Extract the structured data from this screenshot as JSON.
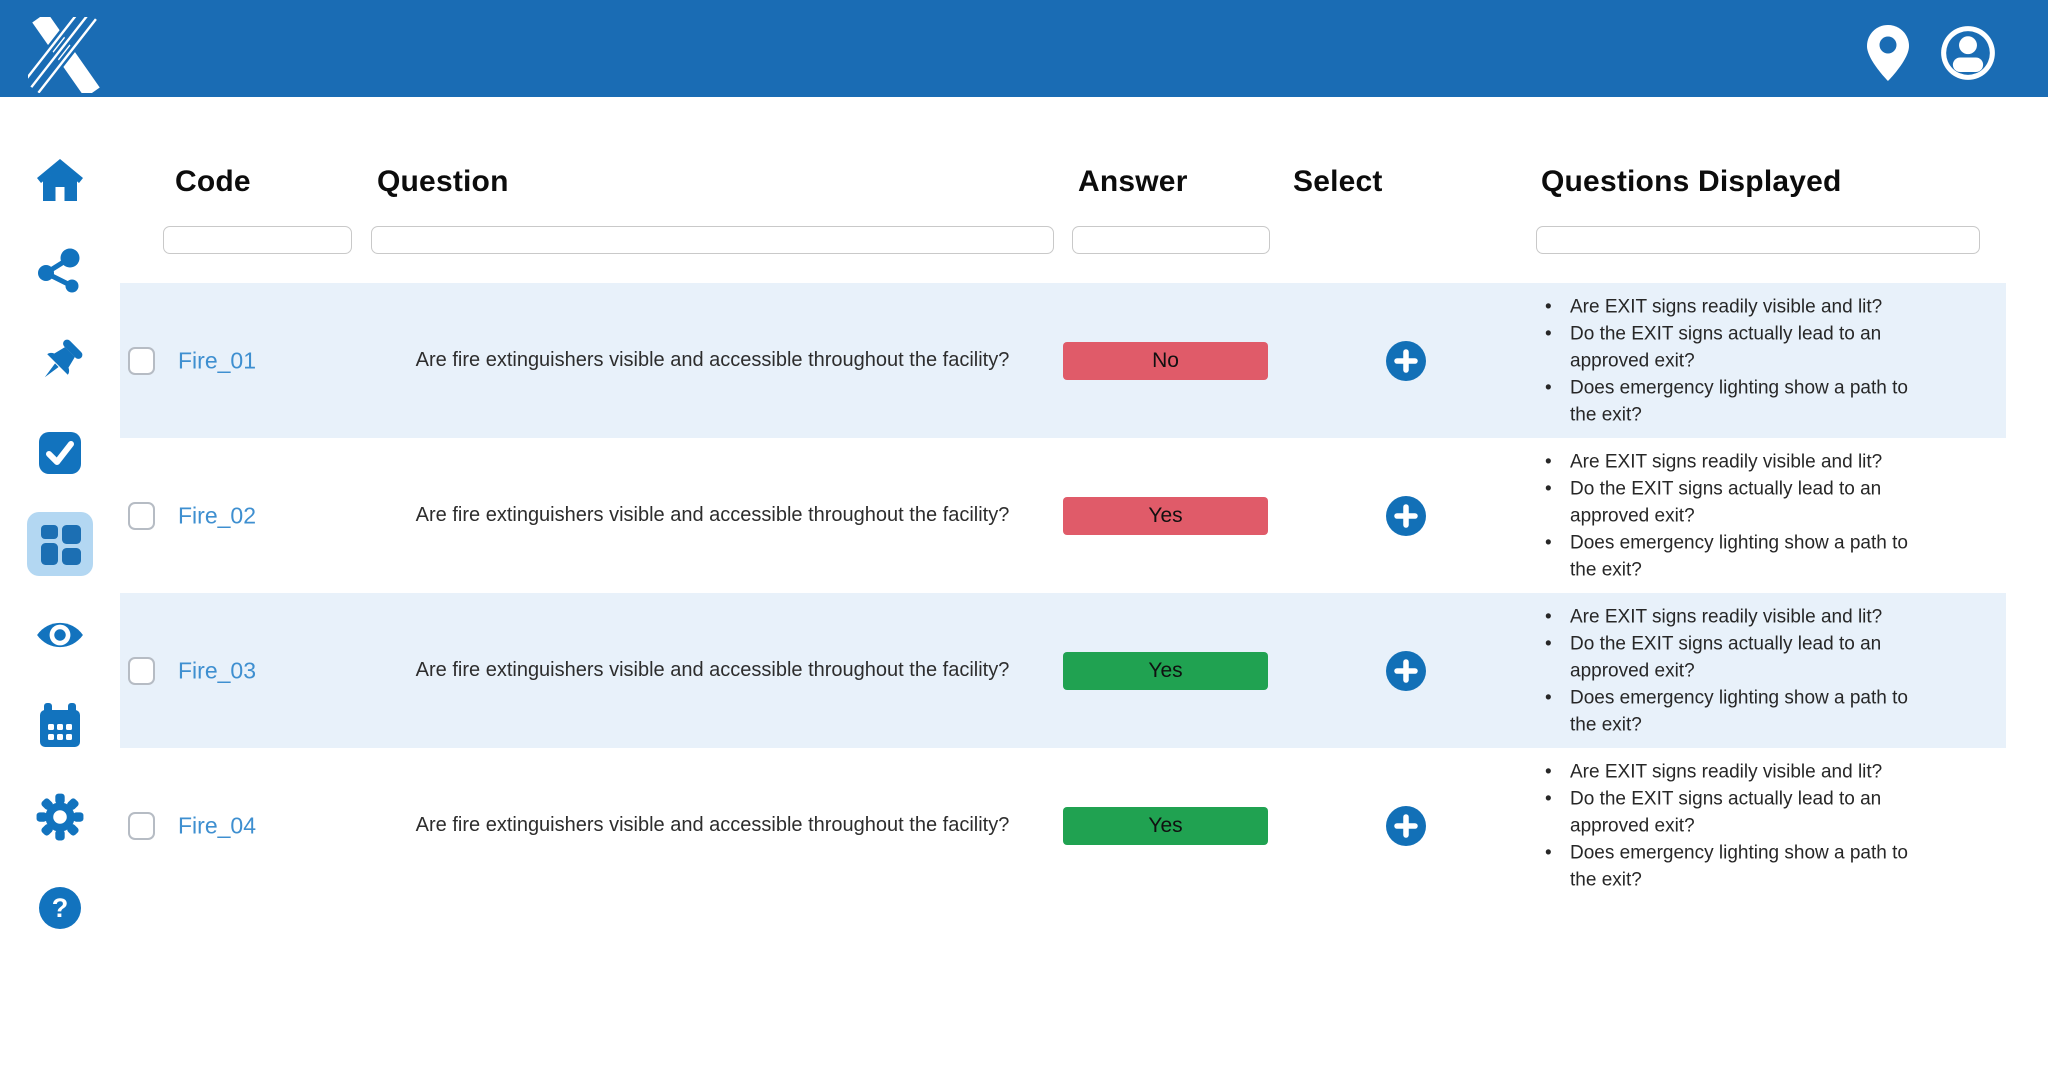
{
  "app": {
    "brand_logo": "x-stripes-logo",
    "header_icons": [
      "location-pin-icon",
      "user-profile-icon"
    ]
  },
  "sidebar": {
    "items": [
      {
        "icon": "home-icon",
        "active": false
      },
      {
        "icon": "share-icon",
        "active": false
      },
      {
        "icon": "pin-icon",
        "active": false
      },
      {
        "icon": "check-square-icon",
        "active": false
      },
      {
        "icon": "dashboard-grid-icon",
        "active": true
      },
      {
        "icon": "eye-icon",
        "active": false
      },
      {
        "icon": "calendar-icon",
        "active": false
      },
      {
        "icon": "settings-gear-icon",
        "active": false
      },
      {
        "icon": "help-icon",
        "active": false
      }
    ]
  },
  "table": {
    "columns": [
      {
        "label": "Code",
        "has_filter": true
      },
      {
        "label": "Question",
        "has_filter": true
      },
      {
        "label": "Answer",
        "has_filter": true
      },
      {
        "label": "Select",
        "has_filter": false
      },
      {
        "label": "Questions Displayed",
        "has_filter": true
      }
    ],
    "filters": {
      "code": "",
      "question": "",
      "answer": "",
      "questions_displayed": ""
    },
    "select_action_label": "+",
    "rows": [
      {
        "code": "Fire_01",
        "question": "Are fire extinguishers visible and accessible throughout the facility?",
        "answer": "No",
        "answer_color": "red",
        "selected": false,
        "questions_displayed": [
          "Are EXIT signs readily visible and lit?",
          "Do the EXIT signs actually lead to an approved exit?",
          "Does emergency lighting show a path to the exit?"
        ]
      },
      {
        "code": "Fire_02",
        "question": "Are fire extinguishers visible and accessible throughout the facility?",
        "answer": "Yes",
        "answer_color": "red",
        "selected": false,
        "questions_displayed": [
          "Are EXIT signs readily visible and lit?",
          "Do the EXIT signs actually lead to an approved exit?",
          "Does emergency lighting show a path to the exit?"
        ]
      },
      {
        "code": "Fire_03",
        "question": "Are fire extinguishers visible and accessible throughout the facility?",
        "answer": "Yes",
        "answer_color": "green",
        "selected": false,
        "questions_displayed": [
          "Are EXIT signs readily visible and lit?",
          "Do the EXIT signs actually lead to an approved exit?",
          "Does emergency lighting show a path to the exit?"
        ]
      },
      {
        "code": "Fire_04",
        "question": "Are fire extinguishers visible and accessible throughout the facility?",
        "answer": "Yes",
        "answer_color": "green",
        "selected": false,
        "questions_displayed": [
          "Are EXIT signs readily visible and lit?",
          "Do the EXIT signs actually lead to an approved exit?",
          "Does emergency lighting show a path to the exit?"
        ]
      }
    ]
  },
  "colors": {
    "header_blue": "#1A6CB4",
    "icon_blue": "#1273BE",
    "active_item_bg": "#B3D7F2",
    "row_highlight": "#E8F1FA",
    "link_blue": "#3E8FD0",
    "answer_red": "#E05B69",
    "answer_green": "#20A251",
    "plus_blue": "#1270B7"
  }
}
